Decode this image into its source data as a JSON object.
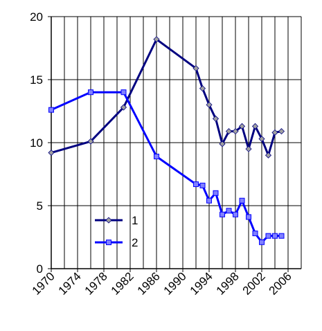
{
  "chart_data": {
    "type": "line",
    "x_grid_every": 2,
    "xlim": [
      1970,
      2008
    ],
    "xticks": [
      1970,
      1974,
      1978,
      1982,
      1986,
      1990,
      1994,
      1998,
      2002,
      2006
    ],
    "ylim": [
      0,
      20
    ],
    "yticks": [
      0,
      5,
      10,
      15,
      20
    ],
    "grid": true,
    "legend": "bottom-left",
    "series": [
      {
        "name": "1",
        "color": "#000080",
        "marker": "diamond",
        "marker_color": "#a0a0a0",
        "x": [
          1970,
          1976,
          1981,
          1986,
          1992,
          1993,
          1994,
          1995,
          1996,
          1997,
          1998,
          1999,
          2000,
          2001,
          2002,
          2003,
          2004,
          2005
        ],
        "values": [
          9.2,
          10.1,
          12.8,
          18.2,
          15.9,
          14.3,
          13.0,
          11.9,
          9.9,
          10.9,
          10.9,
          11.3,
          9.5,
          11.3,
          10.3,
          9.0,
          10.8,
          10.9
        ]
      },
      {
        "name": "2",
        "color": "#0000ff",
        "marker": "square",
        "marker_color": "#8080ff",
        "x": [
          1970,
          1976,
          1981,
          1986,
          1992,
          1993,
          1994,
          1995,
          1996,
          1997,
          1998,
          1999,
          2000,
          2001,
          2002,
          2003,
          2004,
          2005
        ],
        "values": [
          12.6,
          14.0,
          14.0,
          8.9,
          6.7,
          6.6,
          5.4,
          6.0,
          4.3,
          4.6,
          4.3,
          5.4,
          4.1,
          2.8,
          2.1,
          2.6,
          2.6,
          2.6
        ]
      }
    ]
  }
}
